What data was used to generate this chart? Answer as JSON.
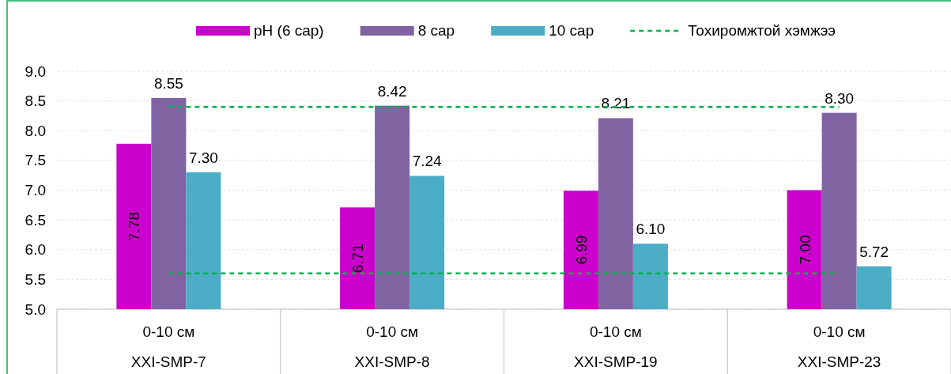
{
  "chart_data": {
    "type": "bar",
    "categories": [
      "0-10 см\nXXI-SMP-7",
      "0-10 см\nXXI-SMP-8",
      "0-10 см\nXXI-SMP-19",
      "0-10 см\nXXI-SMP-23"
    ],
    "series": [
      {
        "name": "pH (6 сар)",
        "color": "#cc00cc",
        "values": [
          7.78,
          6.71,
          6.99,
          7.0
        ],
        "value_labels": [
          "7.78",
          "6.71",
          "6.99",
          "7.00"
        ]
      },
      {
        "name": "8 сар",
        "color": "#8064a2",
        "values": [
          8.55,
          8.42,
          8.21,
          8.3
        ],
        "value_labels": [
          "8.55",
          "8.42",
          "8.21",
          "8.30"
        ]
      },
      {
        "name": "10 сар",
        "color": "#4bacc6",
        "values": [
          7.3,
          7.24,
          6.1,
          5.72
        ],
        "value_labels": [
          "7.30",
          "7.24",
          "6.10",
          "5.72"
        ]
      }
    ],
    "ylim": [
      5.0,
      9.0
    ],
    "yticks": [
      {
        "value": 5,
        "label": "5.0"
      },
      {
        "value": 5.5,
        "label": "5.5"
      },
      {
        "value": 6,
        "label": "6.0"
      },
      {
        "value": 6.5,
        "label": "6.5"
      },
      {
        "value": 7,
        "label": "7.0"
      },
      {
        "value": 7.5,
        "label": "7.5"
      },
      {
        "value": 8,
        "label": "8.0"
      },
      {
        "value": 8.5,
        "label": "8.5"
      },
      {
        "value": 9,
        "label": "9.0"
      }
    ],
    "ref_lines": [
      {
        "axis": "y",
        "value": 8.4,
        "label": "Тохиромжтой хэмжээ",
        "color": "#00b050",
        "line_style": "dashed"
      },
      {
        "axis": "y",
        "value": 5.6,
        "color": "#00b050",
        "line_style": "dashed"
      }
    ],
    "grid": "y",
    "legend": "top"
  }
}
